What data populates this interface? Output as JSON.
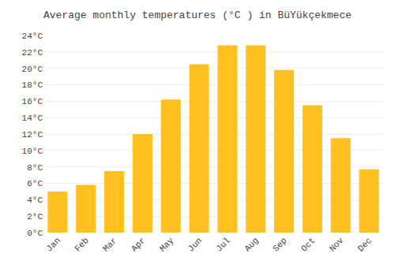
{
  "chart_data": {
    "type": "bar",
    "title": "Average monthly temperatures (°C ) in BüYükçekmece",
    "categories": [
      "Jan",
      "Feb",
      "Mar",
      "Apr",
      "May",
      "Jun",
      "Jul",
      "Aug",
      "Sep",
      "Oct",
      "Nov",
      "Dec"
    ],
    "values": [
      5.0,
      5.8,
      7.5,
      12.0,
      16.2,
      20.5,
      22.8,
      22.8,
      19.8,
      15.5,
      11.5,
      7.7
    ],
    "color": "#FFC020",
    "ylim": [
      0,
      24
    ],
    "yticks": [
      {
        "value": 0,
        "label": "0°C"
      },
      {
        "value": 2,
        "label": "2°C"
      },
      {
        "value": 4,
        "label": "4°C"
      },
      {
        "value": 6,
        "label": "6°C"
      },
      {
        "value": 8,
        "label": "8°C"
      },
      {
        "value": 10,
        "label": "10°C"
      },
      {
        "value": 12,
        "label": "12°C"
      },
      {
        "value": 14,
        "label": "14°C"
      },
      {
        "value": 16,
        "label": "16°C"
      },
      {
        "value": 18,
        "label": "18°C"
      },
      {
        "value": 20,
        "label": "20°C"
      },
      {
        "value": 22,
        "label": "22°C"
      },
      {
        "value": 24,
        "label": "24°C"
      }
    ],
    "grid": true
  }
}
